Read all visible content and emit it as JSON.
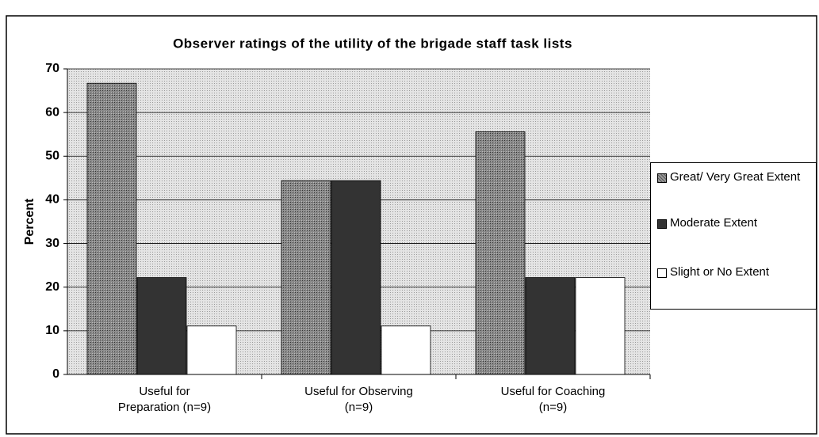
{
  "chart_data": {
    "type": "bar",
    "title": "Observer ratings of the utility of the brigade staff task lists",
    "y_label": "Percent",
    "categories": [
      "Useful for Preparation (n=9)",
      "Useful for Observing (n=9)",
      "Useful for Coaching (n=9)"
    ],
    "series": [
      {
        "name": "Great/ Very Great Extent",
        "color": "#8a8a8a",
        "values": [
          66.7,
          44.4,
          55.6
        ]
      },
      {
        "name": "Moderate Extent",
        "color": "#333333",
        "values": [
          22.2,
          44.4,
          22.2
        ]
      },
      {
        "name": "Slight or No Extent",
        "color": "#ffffff",
        "values": [
          11.1,
          11.1,
          22.2
        ]
      }
    ],
    "ylim": [
      0,
      70
    ],
    "yticks": [
      0,
      10,
      20,
      30,
      40,
      50,
      60,
      70
    ],
    "grid": true,
    "legend": "right"
  }
}
